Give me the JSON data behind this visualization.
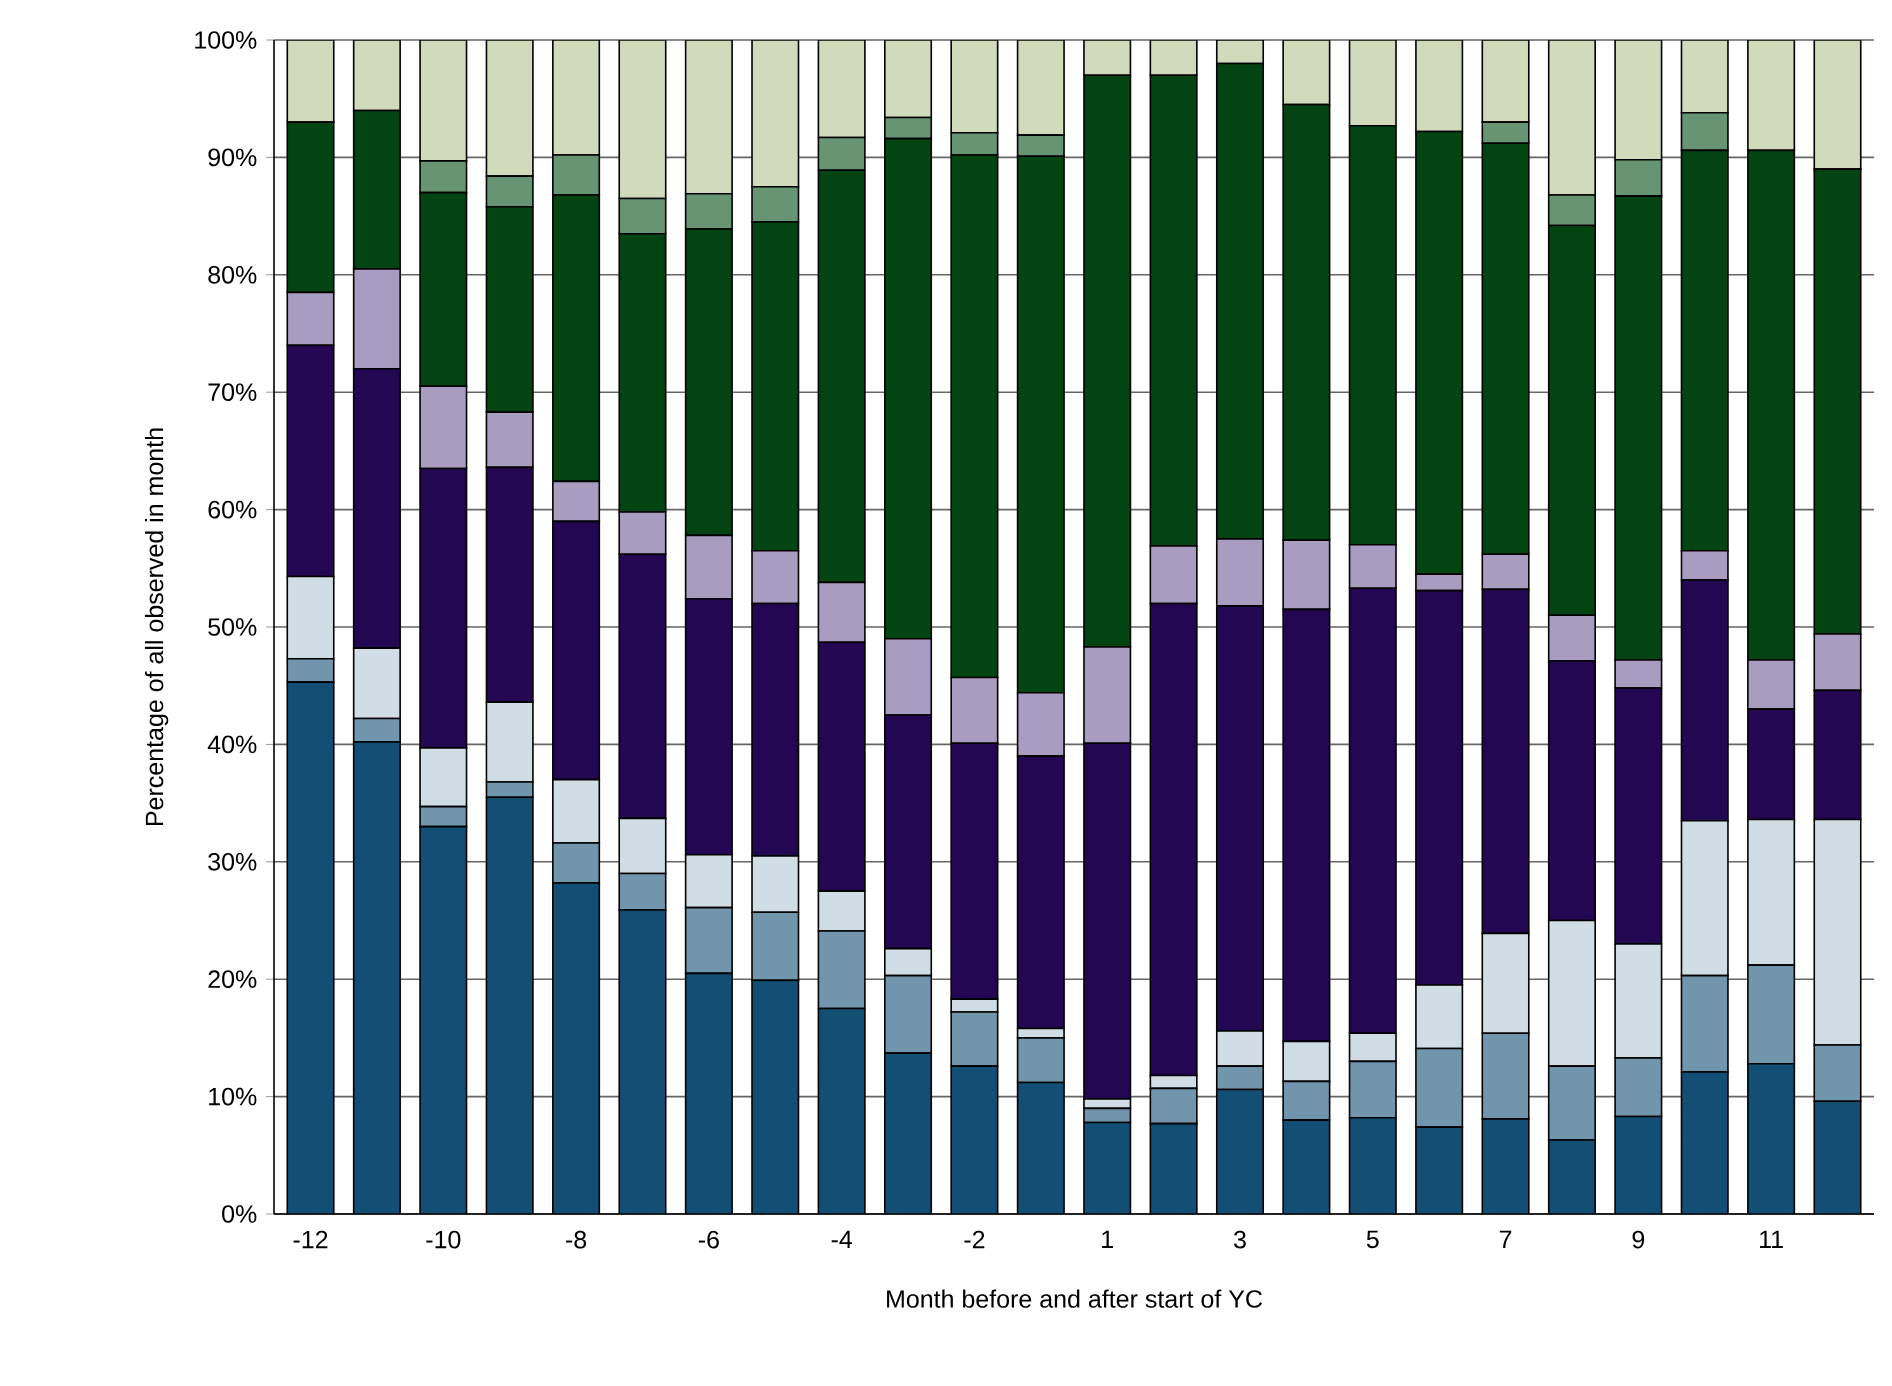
{
  "chart_data": {
    "type": "bar",
    "stacked": true,
    "xlabel": "Month before and after start of YC",
    "ylabel": "Percentage of all observed in month",
    "categories": [
      "-12",
      null,
      "-10",
      null,
      "-8",
      null,
      "-6",
      null,
      "-4",
      null,
      "-2",
      null,
      "1",
      null,
      "3",
      null,
      "5",
      null,
      "7",
      null,
      "9",
      null,
      "11",
      null
    ],
    "ylim": [
      0,
      100
    ],
    "yticks": [
      {
        "value": 0,
        "label": "0%"
      },
      {
        "value": 10,
        "label": "10%"
      },
      {
        "value": 20,
        "label": "20%"
      },
      {
        "value": 30,
        "label": "30%"
      },
      {
        "value": 40,
        "label": "40%"
      },
      {
        "value": 50,
        "label": "50%"
      },
      {
        "value": 60,
        "label": "60%"
      },
      {
        "value": 70,
        "label": "70%"
      },
      {
        "value": 80,
        "label": "80%"
      },
      {
        "value": 90,
        "label": "90%"
      },
      {
        "value": 100,
        "label": "100%"
      }
    ],
    "grid": "y",
    "series": [
      {
        "color": "#134f75",
        "values": [
          45.3,
          40.2,
          33.0,
          35.5,
          28.2,
          25.9,
          20.5,
          19.9,
          17.5,
          13.7,
          12.6,
          11.2,
          7.8,
          7.7,
          10.6,
          8.0,
          8.2,
          7.4,
          8.1,
          6.3,
          8.3,
          12.1,
          12.8,
          9.6
        ]
      },
      {
        "color": "#7295ae",
        "values": [
          2.0,
          2.0,
          1.7,
          1.3,
          3.4,
          3.1,
          5.6,
          5.8,
          6.6,
          6.6,
          4.6,
          3.8,
          1.2,
          3.0,
          2.0,
          3.3,
          4.8,
          6.7,
          7.3,
          6.3,
          5.0,
          8.2,
          8.4,
          4.8
        ]
      },
      {
        "color": "#d0dde5",
        "values": [
          7.0,
          6.0,
          5.0,
          6.8,
          5.4,
          4.7,
          4.5,
          4.8,
          3.4,
          2.3,
          1.1,
          0.8,
          0.8,
          1.1,
          3.0,
          3.4,
          2.4,
          5.4,
          8.5,
          12.4,
          9.7,
          13.2,
          12.4,
          19.2
        ]
      },
      {
        "color": "#230753",
        "values": [
          19.7,
          23.8,
          23.8,
          20.0,
          22.0,
          22.5,
          21.8,
          21.5,
          21.2,
          19.9,
          21.8,
          23.2,
          30.3,
          40.2,
          36.2,
          36.8,
          37.9,
          33.6,
          29.3,
          22.1,
          21.8,
          20.5,
          9.4,
          11.0
        ]
      },
      {
        "color": "#a89cc0",
        "values": [
          4.5,
          8.5,
          7.0,
          4.7,
          3.4,
          3.6,
          5.4,
          4.5,
          5.1,
          6.5,
          5.6,
          5.4,
          8.2,
          4.9,
          5.7,
          5.9,
          3.7,
          1.4,
          3.0,
          3.9,
          2.4,
          2.5,
          4.2,
          4.8
        ]
      },
      {
        "color": "#034512",
        "values": [
          14.5,
          13.5,
          16.5,
          17.5,
          24.4,
          23.7,
          26.1,
          28.0,
          35.1,
          42.6,
          44.5,
          45.7,
          48.7,
          40.1,
          40.5,
          37.1,
          35.7,
          37.7,
          35.0,
          33.2,
          39.5,
          34.1,
          43.4,
          39.6
        ]
      },
      {
        "color": "#679473",
        "values": [
          0,
          0,
          2.7,
          2.6,
          3.4,
          3.0,
          3.0,
          3.0,
          2.8,
          1.8,
          1.9,
          1.8,
          0,
          0,
          0,
          0,
          0,
          0,
          1.8,
          2.6,
          3.1,
          3.2,
          0,
          0
        ]
      },
      {
        "color": "#d1dabb",
        "values": [
          7.0,
          6.0,
          10.3,
          11.6,
          9.8,
          13.5,
          13.1,
          12.5,
          8.3,
          6.6,
          7.9,
          8.1,
          3.0,
          3.0,
          2.0,
          5.5,
          7.3,
          7.8,
          7.0,
          13.2,
          10.2,
          6.2,
          9.4,
          11.0
        ]
      }
    ]
  }
}
